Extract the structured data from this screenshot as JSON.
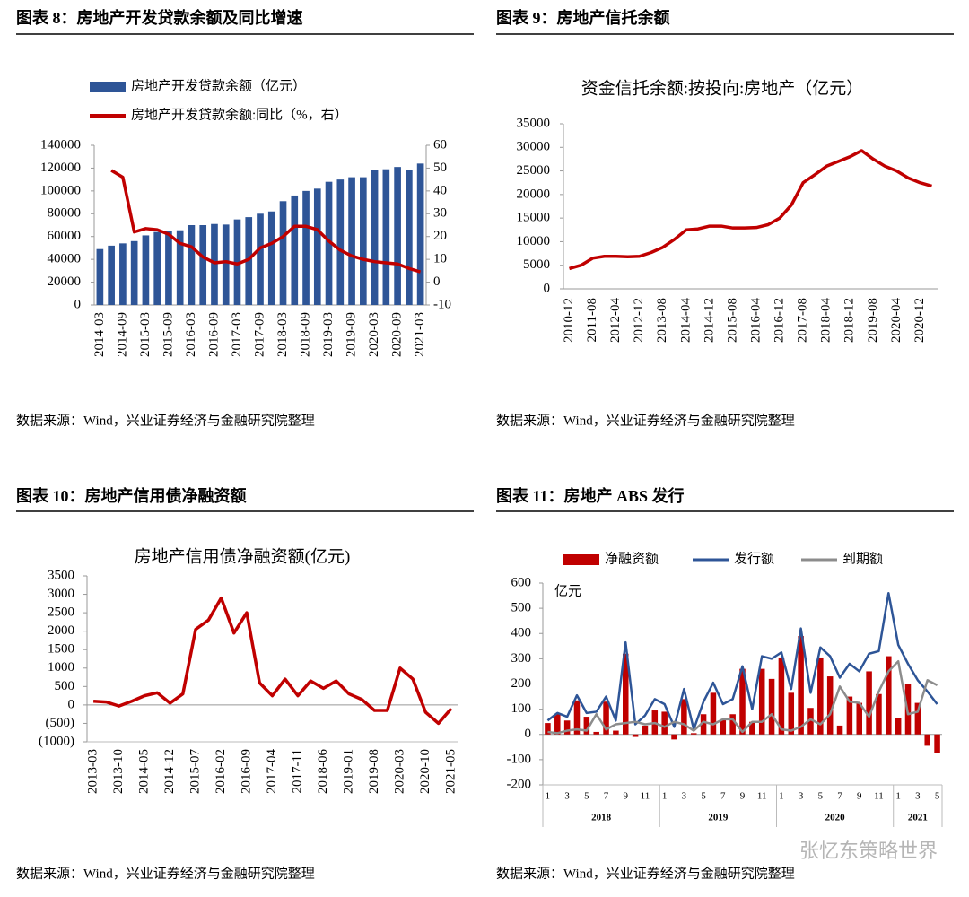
{
  "chart_data": [
    {
      "type": "combo",
      "caption": "图表 8：房地产开发贷款余额及同比增速",
      "source": "数据来源：Wind，兴业证券经济与金融研究院整理",
      "categories": [
        "2014-03",
        null,
        "2014-09",
        null,
        "2015-03",
        null,
        "2015-09",
        null,
        "2016-03",
        null,
        "2016-09",
        null,
        "2017-03",
        null,
        "2017-09",
        null,
        "2018-03",
        null,
        "2018-09",
        null,
        "2019-03",
        null,
        "2019-09",
        null,
        "2020-03",
        null,
        "2020-09",
        null,
        "2021-03"
      ],
      "series": [
        {
          "name": "房地产开发贷款余额（亿元）",
          "type": "bar",
          "color": "#2e5597",
          "values": [
            49000,
            52000,
            54000,
            56000,
            61000,
            64000,
            65000,
            65500,
            70000,
            70000,
            71000,
            70500,
            75000,
            77000,
            80000,
            82000,
            91000,
            96000,
            100000,
            102000,
            108000,
            110000,
            112000,
            112000,
            118000,
            119000,
            121000,
            118000,
            124000
          ]
        },
        {
          "name": "房地产开发贷款余额:同比（%，右）",
          "type": "line",
          "color": "#c00000",
          "axis": "y2",
          "values": [
            null,
            49,
            46,
            22,
            23.5,
            23,
            21,
            17,
            15.5,
            11,
            8.5,
            9,
            8,
            10,
            15,
            17,
            20,
            24.5,
            24.5,
            23,
            18,
            14,
            11.5,
            10,
            9,
            8.5,
            8,
            6,
            4.5
          ]
        }
      ],
      "ylim": [
        0,
        140000
      ],
      "yticks": [
        0,
        20000,
        40000,
        60000,
        80000,
        100000,
        120000,
        140000
      ],
      "y2lim": [
        -10,
        60
      ],
      "y2ticks": [
        -10,
        0,
        10,
        20,
        30,
        40,
        50,
        60
      ]
    },
    {
      "type": "line",
      "caption": "图表 9：房地产信托余额",
      "title": "资金信托余额:按投向:房地产（亿元）",
      "source": "数据来源：Wind，兴业证券经济与金融研究院整理",
      "color": "#c00000",
      "categories": [
        "2010-12",
        null,
        "2011-08",
        null,
        "2012-04",
        null,
        "2012-12",
        null,
        "2013-08",
        null,
        "2014-04",
        null,
        "2014-12",
        null,
        "2015-08",
        null,
        "2016-04",
        null,
        "2016-12",
        null,
        "2017-08",
        null,
        "2018-04",
        null,
        "2018-12",
        null,
        "2019-08",
        null,
        "2020-04",
        null,
        "2020-12",
        null
      ],
      "values": [
        4300,
        5000,
        6500,
        6900,
        6900,
        6800,
        6900,
        7700,
        8800,
        10500,
        12500,
        12700,
        13300,
        13300,
        12900,
        12900,
        13000,
        13600,
        15000,
        17800,
        22500,
        24200,
        26000,
        27000,
        28000,
        29300,
        27500,
        26000,
        25000,
        23500,
        22500,
        21800
      ],
      "ylim": [
        0,
        35000
      ],
      "yticks": [
        0,
        5000,
        10000,
        15000,
        20000,
        25000,
        30000,
        35000
      ]
    },
    {
      "type": "line",
      "caption": "图表 10：房地产信用债净融资额",
      "title": "房地产信用债净融资额(亿元)",
      "source": "数据来源：Wind，兴业证券经济与金融研究院整理",
      "color": "#c00000",
      "negative_tick_color": "#ff0000",
      "categories": [
        "2013-03",
        null,
        "2013-10",
        null,
        "2014-05",
        null,
        "2014-12",
        null,
        "2015-07",
        null,
        "2016-02",
        null,
        "2016-09",
        null,
        "2017-04",
        null,
        "2017-11",
        null,
        "2018-06",
        null,
        "2019-01",
        null,
        "2019-08",
        null,
        "2020-03",
        null,
        "2020-10",
        null,
        "2021-05"
      ],
      "values": [
        100,
        80,
        -30,
        100,
        250,
        330,
        50,
        300,
        2050,
        2300,
        2900,
        1950,
        2500,
        600,
        250,
        700,
        250,
        650,
        450,
        650,
        300,
        150,
        -150,
        -150,
        1000,
        700,
        -200,
        -500,
        -100
      ],
      "ylim": [
        -1000,
        3500
      ],
      "yticks": [
        {
          "value": -1000,
          "label": "(1000)"
        },
        {
          "value": -500,
          "label": "(500)"
        },
        0,
        500,
        1000,
        1500,
        2000,
        2500,
        3000,
        3500
      ]
    },
    {
      "type": "combo",
      "caption": "图表 11：房地产 ABS 发行",
      "source": "数据来源：Wind，兴业证券经济与金融研究院整理",
      "unit": "亿元",
      "categories": [
        "1",
        null,
        "3",
        null,
        "5",
        null,
        "7",
        null,
        "9",
        null,
        "11",
        null,
        "1",
        null,
        "3",
        null,
        "5",
        null,
        "7",
        null,
        "9",
        null,
        "11",
        null,
        "1",
        null,
        "3",
        null,
        "5",
        null,
        "7",
        null,
        "9",
        null,
        "11",
        null,
        "1",
        null,
        "3",
        null,
        "5"
      ],
      "years": [
        "2018",
        "2019",
        "2020",
        "2021"
      ],
      "series": [
        {
          "name": "净融资额",
          "type": "bar",
          "color": "#c00000",
          "values": [
            45,
            80,
            55,
            135,
            70,
            10,
            130,
            15,
            320,
            -10,
            35,
            95,
            90,
            -20,
            140,
            5,
            80,
            165,
            60,
            80,
            260,
            50,
            260,
            220,
            305,
            165,
            390,
            105,
            305,
            230,
            35,
            150,
            125,
            250,
            160,
            310,
            65,
            200,
            125,
            -45,
            -75
          ]
        },
        {
          "name": "发行额",
          "type": "line",
          "color": "#2e5597",
          "values": [
            55,
            85,
            70,
            155,
            85,
            90,
            150,
            55,
            365,
            40,
            75,
            140,
            120,
            30,
            180,
            20,
            130,
            205,
            120,
            140,
            270,
            100,
            310,
            300,
            325,
            180,
            420,
            165,
            345,
            310,
            225,
            280,
            250,
            320,
            330,
            560,
            355,
            280,
            215,
            170,
            120
          ]
        },
        {
          "name": "到期额",
          "type": "line",
          "color": "#8c8c8c",
          "values": [
            10,
            5,
            15,
            20,
            15,
            80,
            20,
            40,
            45,
            50,
            40,
            45,
            30,
            50,
            40,
            15,
            50,
            40,
            60,
            60,
            10,
            50,
            50,
            80,
            20,
            15,
            30,
            60,
            40,
            80,
            190,
            130,
            125,
            70,
            170,
            250,
            290,
            80,
            90,
            215,
            195
          ]
        }
      ],
      "ylim": [
        -200,
        600
      ],
      "yticks": [
        -200,
        -100,
        0,
        100,
        200,
        300,
        400,
        500,
        600
      ]
    }
  ],
  "watermark": "张忆东策略世界"
}
